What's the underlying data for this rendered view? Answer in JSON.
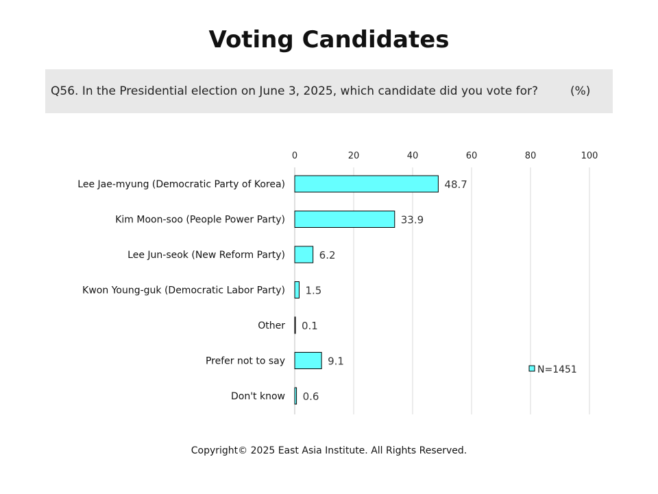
{
  "page": {
    "title": "Voting Candidates",
    "question": "Q56. In the Presidential election on June 3, 2025, which candidate did you vote for?",
    "unit": "(%)",
    "copyright": "Copyright© 2025 East Asia Institute. All Rights Reserved."
  },
  "chart_data": {
    "type": "bar",
    "orientation": "horizontal",
    "categories": [
      "Lee Jae-myung (Democratic Party of Korea)",
      "Kim Moon-soo (People Power Party)",
      "Lee Jun-seok (New Reform Party)",
      "Kwon Young-guk (Democratic Labor Party)",
      "Other",
      "Prefer not to say",
      "Don't know"
    ],
    "series": [
      {
        "name": "N=1451",
        "values": [
          48.7,
          33.9,
          6.2,
          1.5,
          0.1,
          9.1,
          0.6
        ],
        "color": "#66ffff"
      }
    ],
    "data_labels": [
      "48.7",
      "33.9",
      "6.2",
      "1.5",
      "0.1",
      "9.1",
      "0.6"
    ],
    "xlim": [
      0,
      100
    ],
    "xticks": [
      0,
      20,
      40,
      60,
      80,
      100
    ],
    "x_axis_position": "top",
    "grid": true,
    "legend_position": "bottom-right"
  }
}
